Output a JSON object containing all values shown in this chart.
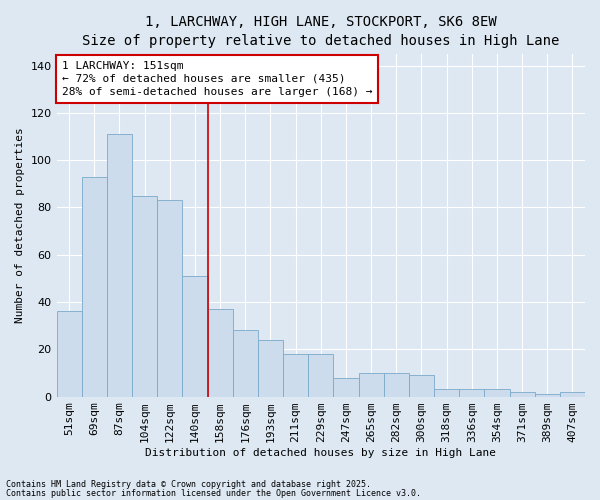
{
  "title": "1, LARCHWAY, HIGH LANE, STOCKPORT, SK6 8EW",
  "subtitle": "Size of property relative to detached houses in High Lane",
  "xlabel": "Distribution of detached houses by size in High Lane",
  "ylabel": "Number of detached properties",
  "categories": [
    "51sqm",
    "69sqm",
    "87sqm",
    "104sqm",
    "122sqm",
    "140sqm",
    "158sqm",
    "176sqm",
    "193sqm",
    "211sqm",
    "229sqm",
    "247sqm",
    "265sqm",
    "282sqm",
    "300sqm",
    "318sqm",
    "336sqm",
    "354sqm",
    "371sqm",
    "389sqm",
    "407sqm"
  ],
  "values": [
    36,
    93,
    111,
    85,
    83,
    51,
    37,
    28,
    24,
    18,
    18,
    8,
    10,
    10,
    9,
    3,
    3,
    3,
    2,
    1,
    2
  ],
  "bar_color": "#ccdcec",
  "bar_edge_color": "#7aaaca",
  "vline_x": 6,
  "vline_color": "#cc0000",
  "annotation_title": "1 LARCHWAY: 151sqm",
  "annotation_line1": "← 72% of detached houses are smaller (435)",
  "annotation_line2": "28% of semi-detached houses are larger (168) →",
  "annotation_box_color": "#ffffff",
  "annotation_box_edge": "#cc0000",
  "footnote1": "Contains HM Land Registry data © Crown copyright and database right 2025.",
  "footnote2": "Contains public sector information licensed under the Open Government Licence v3.0.",
  "background_color": "#dde8f3",
  "plot_background": "#dde8f3",
  "ylim": [
    0,
    145
  ],
  "yticks": [
    0,
    20,
    40,
    60,
    80,
    100,
    120,
    140
  ],
  "title_fontsize": 10,
  "subtitle_fontsize": 9,
  "axis_label_fontsize": 8,
  "tick_fontsize": 8,
  "annot_fontsize": 8
}
